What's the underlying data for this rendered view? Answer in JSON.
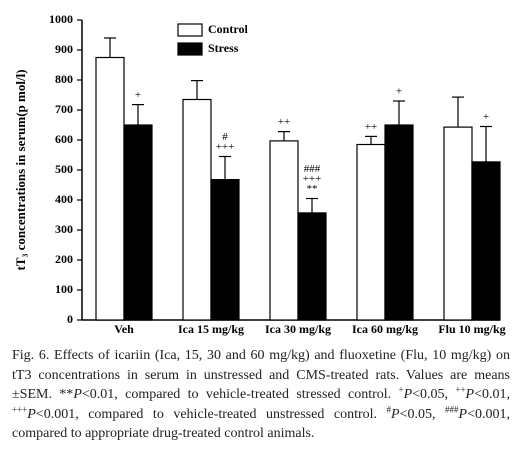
{
  "chart_data": {
    "type": "bar",
    "ylabel": "tT₃ concentrations in serum(p mol/l)",
    "categories": [
      "Veh",
      "Ica 15 mg/kg",
      "Ica 30 mg/kg",
      "Ica 60 mg/kg",
      "Flu 10 mg/kg"
    ],
    "series": [
      {
        "name": "Control",
        "color": "#ffffff",
        "values": [
          875,
          735,
          597,
          585,
          643
        ],
        "errors": [
          65,
          63,
          31,
          27,
          100
        ],
        "annotations": [
          [],
          [],
          [
            "++"
          ],
          [
            "++"
          ],
          []
        ]
      },
      {
        "name": "Stress",
        "color": "#000000",
        "values": [
          650,
          468,
          357,
          650,
          527
        ],
        "errors": [
          68,
          77,
          48,
          80,
          118
        ],
        "annotations": [
          [
            "+"
          ],
          [
            "#",
            "+++"
          ],
          [
            "###",
            "+++",
            "**"
          ],
          [
            "+"
          ],
          [
            "+"
          ]
        ]
      }
    ],
    "ylim": [
      0,
      1000
    ],
    "yticks": [
      0,
      100,
      200,
      300,
      400,
      500,
      600,
      700,
      800,
      900,
      1000
    ],
    "grid": false,
    "legend": "top"
  },
  "caption": [
    {
      "text": "Fig. 6. Effects of icariin (Ica, 15, 30 and 60 mg/kg) and fluoxetine (Flu, 10 mg/kg) on tT3 concentrations in serum in unstressed and CMS-treated rats. Values are means ±SEM. **",
      "format": "plain"
    },
    {
      "text": "P",
      "format": "italic"
    },
    {
      "text": "<0.01, compared to vehicle-treated stressed control. ",
      "format": "plain"
    },
    {
      "text": "+",
      "format": "sup"
    },
    {
      "text": "P",
      "format": "italic"
    },
    {
      "text": "<0.05, ",
      "format": "plain"
    },
    {
      "text": "++",
      "format": "sup"
    },
    {
      "text": "P",
      "format": "italic"
    },
    {
      "text": "<0.01, ",
      "format": "plain"
    },
    {
      "text": "+++",
      "format": "sup"
    },
    {
      "text": "P",
      "format": "italic"
    },
    {
      "text": "<0.001, compared to vehicle-treated unstressed control. ",
      "format": "plain"
    },
    {
      "text": "#",
      "format": "sup"
    },
    {
      "text": "P",
      "format": "italic"
    },
    {
      "text": "<0.05, ",
      "format": "plain"
    },
    {
      "text": "###",
      "format": "sup"
    },
    {
      "text": "P",
      "format": "italic"
    },
    {
      "text": "<0.001, compared to appropriate drug-treated control animals.",
      "format": "plain"
    }
  ]
}
